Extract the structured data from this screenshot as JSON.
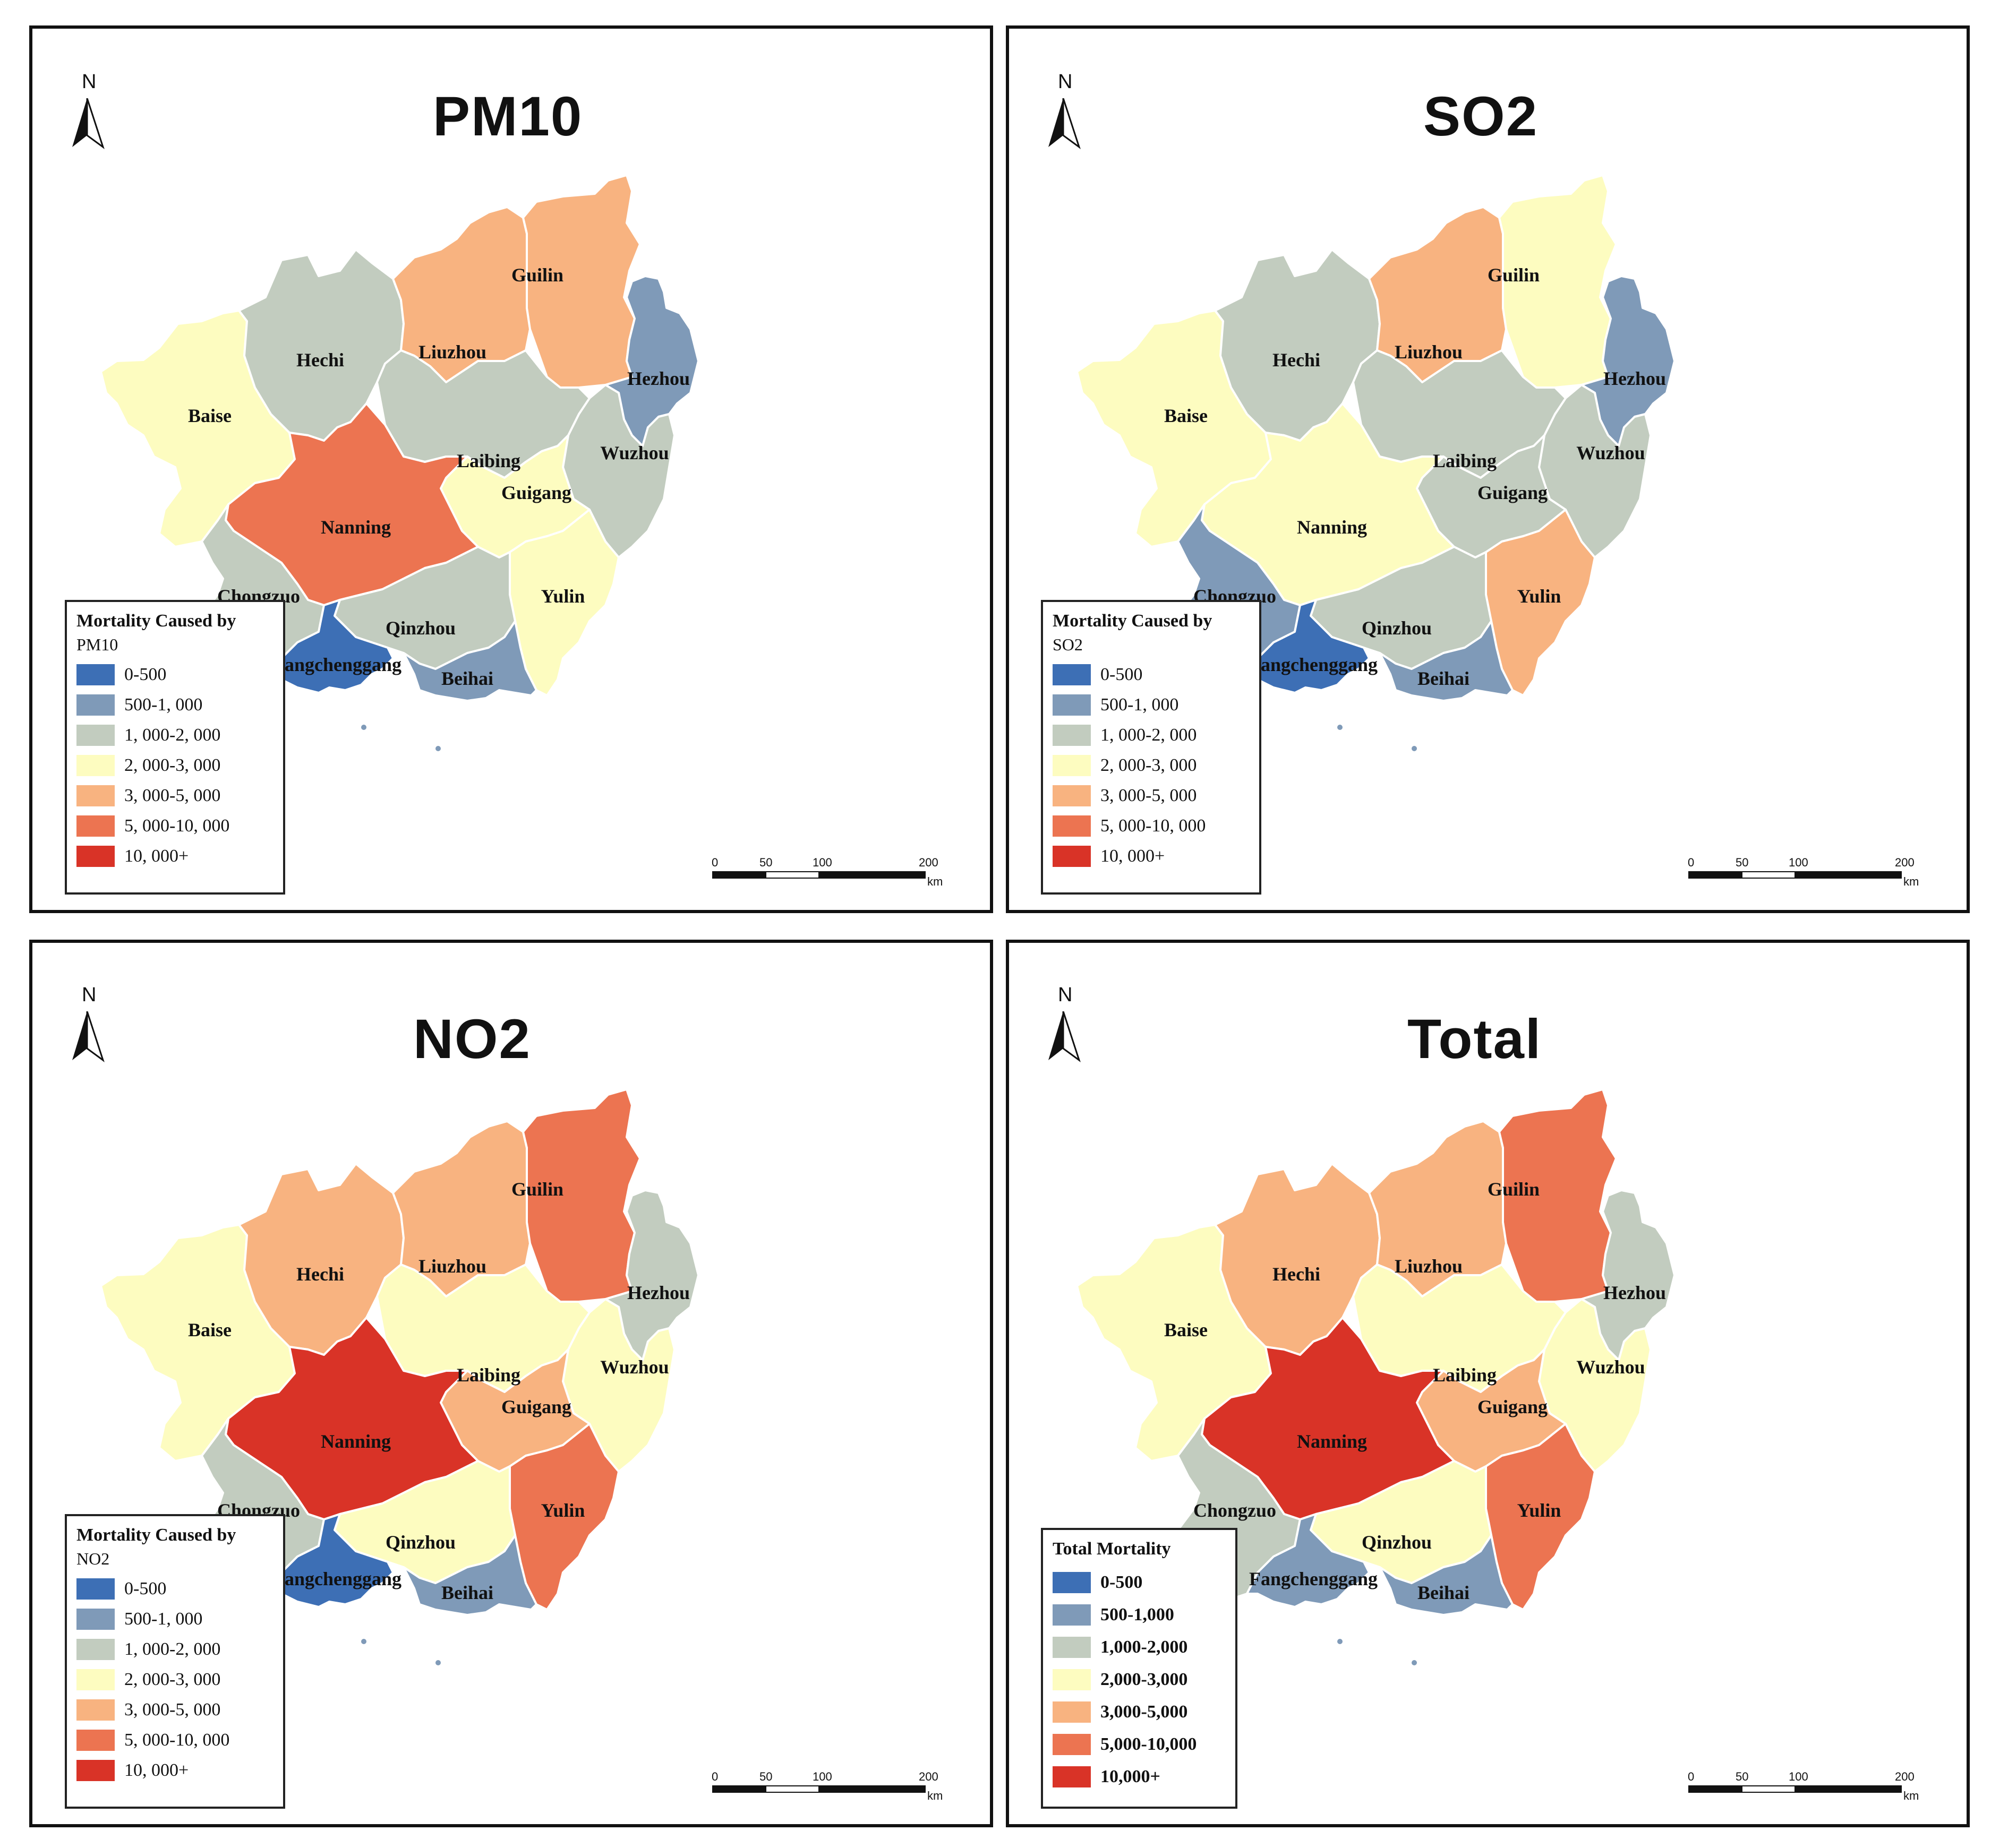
{
  "panels": [
    {
      "id": "pm10",
      "title": "PM10",
      "legend_title": "Mortality Caused by",
      "legend_sub": "PM10",
      "legend_style": "pollutant",
      "regions": {
        "Baise": 3,
        "Hechi": 2,
        "Liuzhou": 4,
        "Guilin": 4,
        "Hezhou": 1,
        "Wuzhou": 2,
        "Laibing": 2,
        "Guigang": 3,
        "Nanning": 5,
        "Chongzuo": 2,
        "Yulin": 3,
        "Qinzhou": 2,
        "Fangchenggang": 0,
        "Beihai": 1
      }
    },
    {
      "id": "so2",
      "title": "SO2",
      "legend_title": "Mortality Caused by",
      "legend_sub": "SO2",
      "legend_style": "pollutant",
      "regions": {
        "Baise": 3,
        "Hechi": 2,
        "Liuzhou": 4,
        "Guilin": 3,
        "Hezhou": 1,
        "Wuzhou": 2,
        "Laibing": 2,
        "Guigang": 2,
        "Nanning": 3,
        "Chongzuo": 1,
        "Yulin": 4,
        "Qinzhou": 2,
        "Fangchenggang": 0,
        "Beihai": 1
      }
    },
    {
      "id": "no2",
      "title": "NO2",
      "legend_title": "Mortality Caused by",
      "legend_sub": "NO2",
      "legend_style": "pollutant",
      "regions": {
        "Baise": 3,
        "Hechi": 4,
        "Liuzhou": 4,
        "Guilin": 5,
        "Hezhou": 2,
        "Wuzhou": 3,
        "Laibing": 3,
        "Guigang": 4,
        "Nanning": 6,
        "Chongzuo": 2,
        "Yulin": 5,
        "Qinzhou": 3,
        "Fangchenggang": 0,
        "Beihai": 1
      }
    },
    {
      "id": "total",
      "title": "Total",
      "legend_title": "Total Mortality",
      "legend_sub": "",
      "legend_style": "total",
      "regions": {
        "Baise": 3,
        "Hechi": 4,
        "Liuzhou": 4,
        "Guilin": 5,
        "Hezhou": 2,
        "Wuzhou": 3,
        "Laibing": 3,
        "Guigang": 4,
        "Nanning": 6,
        "Chongzuo": 2,
        "Yulin": 5,
        "Qinzhou": 3,
        "Fangchenggang": 1,
        "Beihai": 1
      }
    }
  ],
  "classes": {
    "colors": [
      "#3d6fb5",
      "#7f9ab8",
      "#c2ccbf",
      "#fdfcc0",
      "#f8b380",
      "#ec7451",
      "#d93327"
    ],
    "labels_pollutant": [
      "0-500",
      "500-1, 000",
      "1, 000-2, 000",
      "2, 000-3, 000",
      "3, 000-5, 000",
      "5, 000-10, 000",
      "10, 000+"
    ],
    "labels_total": [
      "0-500",
      "500-1,000",
      "1,000-2,000",
      "2,000-3,000",
      "3,000-5,000",
      "5,000-10,000",
      "10,000+"
    ]
  },
  "north_label": "N",
  "scale": {
    "ticks": [
      "0",
      "50",
      "100",
      "200"
    ],
    "unit": "km"
  }
}
